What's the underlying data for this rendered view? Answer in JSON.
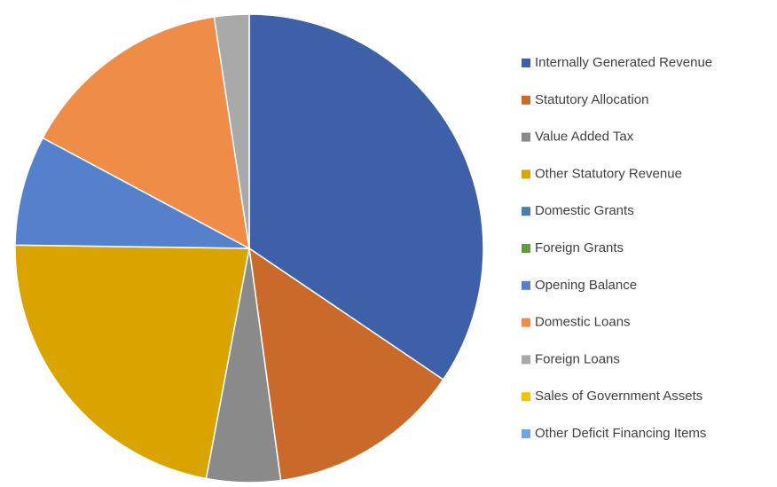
{
  "chart_data": {
    "type": "pie",
    "categories": [
      "Internally Generated Revenue",
      "Statutory Allocation",
      "Value Added Tax",
      "Other Statutory Revenue",
      "Domestic Grants",
      "Foreign Grants",
      "Opening Balance",
      "Domestic Loans",
      "Foreign Loans",
      "Sales of Government Assets",
      "Other Deficit Financing Items"
    ],
    "values": [
      34.5,
      13.4,
      5.1,
      22.3,
      0,
      0,
      7.6,
      14.8,
      2.4,
      0,
      0
    ],
    "colors": [
      "#3d60a8",
      "#c9692a",
      "#8a8a8a",
      "#d9a400",
      "#4a7dae",
      "#5f9a3f",
      "#5581cc",
      "#ee8c48",
      "#a9a9a9",
      "#f5c200",
      "#6ea7dd"
    ],
    "legend": "right"
  }
}
